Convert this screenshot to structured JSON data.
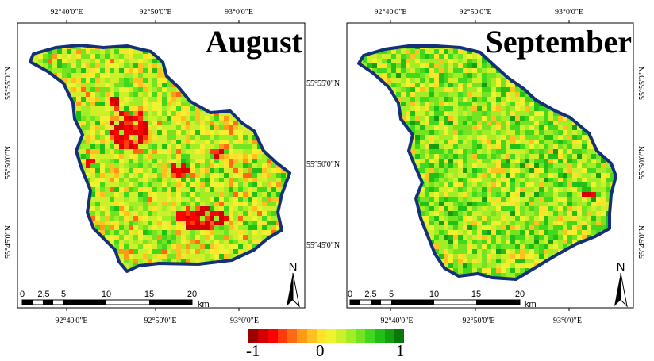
{
  "panels": [
    {
      "title": "August",
      "lon_ticks": [
        "92°40'0\"E",
        "92°50'0\"E",
        "93°0'0\"E"
      ],
      "lat_ticks": [
        "55°55'0\"N",
        "55°50'0\"N",
        "55°45'0\"N"
      ],
      "scalebar": {
        "labels": [
          "0",
          "2,5",
          "5",
          "10",
          "15",
          "20"
        ],
        "unit": "km"
      },
      "north": "N"
    },
    {
      "title": "September",
      "lon_ticks": [
        "92°40'0\"E",
        "92°50'0\"E",
        "93°0'0\"E"
      ],
      "lat_ticks": [
        "55°55'0\"N",
        "55°50'0\"N",
        "55°45'0\"N"
      ],
      "scalebar": {
        "labels": [
          "0",
          "2,5",
          "5",
          "10",
          "15",
          "20"
        ],
        "unit": "km"
      },
      "north": "N"
    }
  ],
  "legend": {
    "min_label": "-1",
    "mid_label": "0",
    "max_label": "1",
    "colors": [
      "#9b0000",
      "#d40000",
      "#ff0000",
      "#ff3b0c",
      "#ff6a12",
      "#ff9a18",
      "#ffc020",
      "#ffe22b",
      "#f0f230",
      "#cdf02a",
      "#a2ee26",
      "#74e422",
      "#42d81e",
      "#22bf16",
      "#169e10",
      "#0a780a"
    ]
  },
  "colors": {
    "outline": "#13307a",
    "frame": "#000000"
  }
}
